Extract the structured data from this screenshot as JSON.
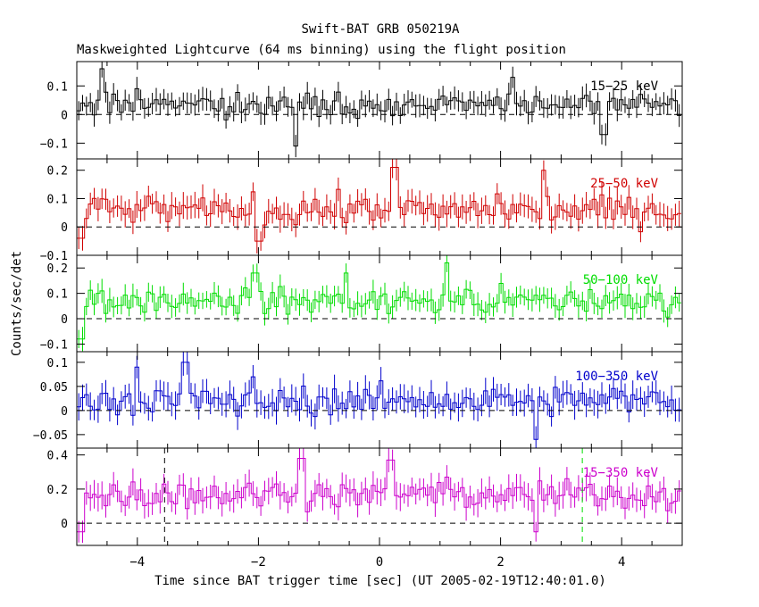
{
  "chart_data": {
    "type": "line",
    "title": "Swift-BAT GRB 050219A",
    "subtitle": "Maskweighted Lightcurve (64 ms binning) using the flight position",
    "xlabel": "Time since BAT trigger time [sec] (UT 2005-02-19T12:40:01.0)",
    "ylabel": "Counts/sec/det",
    "xlim": [
      -5,
      5
    ],
    "x_ticks": [
      -4,
      -2,
      0,
      2,
      4
    ],
    "x_tick_labels": [
      "−4",
      "−2",
      "0",
      "2",
      "4"
    ],
    "bin_width_s": 0.064,
    "panels": [
      {
        "name": "15-25 keV",
        "label": "15−25 keV",
        "color": "#000000",
        "ylim": [
          -0.155,
          0.185
        ],
        "y_ticks": [
          -0.1,
          0,
          0.1
        ],
        "y_tick_labels": [
          "−0.1",
          "0",
          "0.1"
        ],
        "mean": 0.035,
        "noise": 0.032,
        "err": 0.035,
        "features": [
          [
            -4.6,
            0.16
          ],
          [
            -1.4,
            -0.11
          ],
          [
            2.2,
            0.13
          ],
          [
            3.7,
            -0.07
          ]
        ]
      },
      {
        "name": "25-50 keV",
        "label": "25−50 keV",
        "color": "#d00000",
        "ylim": [
          -0.1,
          0.24
        ],
        "y_ticks": [
          -0.1,
          0,
          0.1,
          0.2
        ],
        "y_tick_labels": [
          "−0.1",
          "0",
          "0.1",
          "0.2"
        ],
        "mean": 0.06,
        "noise": 0.035,
        "err": 0.04,
        "features": [
          [
            -4.95,
            -0.04
          ],
          [
            -2.0,
            -0.05
          ],
          [
            0.25,
            0.21
          ],
          [
            2.7,
            0.2
          ]
        ]
      },
      {
        "name": "50-100 keV",
        "label": "50−100 keV",
        "color": "#00dd00",
        "ylim": [
          -0.13,
          0.25
        ],
        "y_ticks": [
          -0.1,
          0,
          0.1,
          0.2
        ],
        "y_tick_labels": [
          "−0.1",
          "0",
          "0.1",
          "0.2"
        ],
        "mean": 0.07,
        "noise": 0.035,
        "err": 0.04,
        "features": [
          [
            -4.95,
            -0.08
          ],
          [
            -2.05,
            0.18
          ],
          [
            -0.55,
            0.18
          ],
          [
            1.1,
            0.22
          ]
        ]
      },
      {
        "name": "100-350 keV",
        "label": "100−350 keV",
        "color": "#0000cc",
        "ylim": [
          -0.078,
          0.122
        ],
        "y_ticks": [
          -0.05,
          0,
          0.05,
          0.1
        ],
        "y_tick_labels": [
          "−0.05",
          "0",
          "0.05",
          "0.1"
        ],
        "mean": 0.02,
        "noise": 0.022,
        "err": 0.025,
        "features": [
          [
            -4.0,
            0.09
          ],
          [
            -3.2,
            0.1
          ],
          [
            -2.1,
            0.07
          ],
          [
            2.6,
            -0.06
          ]
        ]
      },
      {
        "name": "15-350 keV",
        "label": "15−350 keV",
        "color": "#cc00cc",
        "ylim": [
          -0.13,
          0.44
        ],
        "y_ticks": [
          0,
          0.2,
          0.4
        ],
        "y_tick_labels": [
          "0",
          "0.2",
          "0.4"
        ],
        "mean": 0.17,
        "noise": 0.06,
        "err": 0.07,
        "features": [
          [
            -4.95,
            -0.05
          ],
          [
            -1.3,
            0.38
          ],
          [
            0.2,
            0.37
          ],
          [
            2.6,
            -0.05
          ]
        ],
        "markers": [
          {
            "x": -3.55,
            "color": "#000000"
          },
          {
            "x": 3.35,
            "color": "#00dd00"
          }
        ]
      }
    ]
  }
}
